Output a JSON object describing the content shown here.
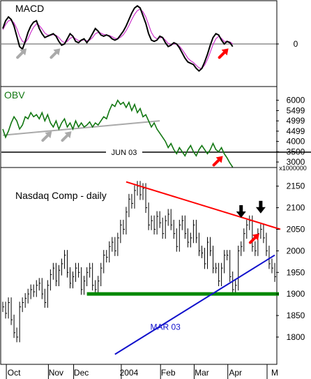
{
  "chart_data": [
    {
      "panel": "macd",
      "type": "line",
      "title": "MACD",
      "ylim": [
        -1.6,
        1.6
      ],
      "y_ticks": [
        {
          "value": 0,
          "label": "0"
        }
      ],
      "zero_line": 0,
      "series": [
        {
          "role": "macd",
          "color": "#000000",
          "values": [
            0.6,
            0.9,
            1.05,
            0.95,
            0.7,
            0.3,
            -0.1,
            -0.2,
            0.1,
            0.45,
            0.7,
            0.85,
            0.9,
            0.6,
            0.4,
            0.25,
            0.3,
            0.35,
            0.4,
            0.3,
            0.1,
            -0.05,
            0.0,
            0.2,
            0.4,
            0.3,
            0.1,
            0.05,
            0.15,
            0.2,
            0.05,
            0.2,
            0.4,
            0.6,
            0.5,
            0.35,
            0.3,
            0.35,
            0.3,
            0.2,
            0.15,
            0.2,
            0.35,
            0.5,
            0.7,
            0.95,
            1.2,
            1.4,
            1.48,
            1.4,
            1.1,
            0.8,
            0.4,
            0.15,
            0.1,
            0.15,
            0.3,
            0.25,
            0.05,
            -0.1,
            -0.05,
            0.05,
            0.0,
            -0.15,
            -0.35,
            -0.55,
            -0.7,
            -0.75,
            -0.8,
            -0.95,
            -1.05,
            -0.95,
            -0.7,
            -0.4,
            -0.05,
            0.25,
            0.4,
            0.35,
            0.15,
            0.0,
            0.1,
            0.05,
            -0.1
          ]
        },
        {
          "role": "signal",
          "color": "#cc33cc",
          "values": [
            0.55,
            0.75,
            0.9,
            0.92,
            0.82,
            0.6,
            0.3,
            0.1,
            0.05,
            0.2,
            0.45,
            0.65,
            0.78,
            0.72,
            0.58,
            0.42,
            0.35,
            0.34,
            0.36,
            0.34,
            0.25,
            0.12,
            0.05,
            0.1,
            0.22,
            0.27,
            0.2,
            0.13,
            0.13,
            0.16,
            0.12,
            0.15,
            0.25,
            0.4,
            0.45,
            0.42,
            0.37,
            0.35,
            0.33,
            0.28,
            0.22,
            0.2,
            0.26,
            0.36,
            0.52,
            0.72,
            0.95,
            1.15,
            1.3,
            1.35,
            1.25,
            1.05,
            0.75,
            0.45,
            0.27,
            0.2,
            0.24,
            0.25,
            0.15,
            0.02,
            -0.03,
            0.0,
            0.0,
            -0.08,
            -0.22,
            -0.38,
            -0.55,
            -0.65,
            -0.72,
            -0.83,
            -0.93,
            -0.95,
            -0.82,
            -0.6,
            -0.32,
            -0.02,
            0.2,
            0.3,
            0.22,
            0.1,
            0.1,
            0.08,
            0.0
          ]
        }
      ],
      "annotations": [
        {
          "kind": "arrow",
          "color": "#aaaaaa",
          "at_index": 8
        },
        {
          "kind": "arrow",
          "color": "#aaaaaa",
          "at_index": 20
        },
        {
          "kind": "arrow",
          "color": "#ff0000",
          "at_index": 80
        }
      ]
    },
    {
      "panel": "obv",
      "type": "line",
      "title": "OBV",
      "ylim": [
        2800,
        6600
      ],
      "y_ticks": [
        {
          "value": 6000,
          "label": "6000"
        },
        {
          "value": 5499,
          "label": "5499"
        },
        {
          "value": 4999,
          "label": "4999"
        },
        {
          "value": 4499,
          "label": "4499"
        },
        {
          "value": 4000,
          "label": "4000"
        },
        {
          "value": 3500,
          "label": "3500"
        },
        {
          "value": 3000,
          "label": "3000"
        }
      ],
      "unit_label": "x1000000",
      "series": [
        {
          "role": "obv",
          "color": "#117711",
          "values": [
            4600,
            4200,
            4500,
            4900,
            5200,
            5000,
            4600,
            4800,
            5200,
            5100,
            5400,
            5200,
            5300,
            5100,
            5400,
            5000,
            5300,
            4900,
            4700,
            5000,
            4600,
            4900,
            5100,
            4700,
            4900,
            4600,
            5000,
            4700,
            4900,
            4700,
            4800,
            4950,
            4700,
            4900,
            4800,
            5000,
            5200,
            5100,
            5500,
            5800,
            5700,
            6000,
            5800,
            5900,
            5650,
            5900,
            5500,
            5800,
            5400,
            5600,
            5200,
            5300,
            5000,
            4700,
            4900,
            4600,
            4400,
            4200,
            4000,
            3700,
            3900,
            3600,
            3400,
            3700,
            3500,
            3300,
            3600,
            3800,
            3500,
            3300,
            3600,
            3800,
            3600,
            3400,
            3600,
            3900,
            3600,
            3500,
            3700,
            3400,
            3200,
            2950,
            2750
          ]
        }
      ],
      "trendline": {
        "color": "#aaaaaa",
        "from": {
          "index": 0,
          "value": 4300
        },
        "to": {
          "index": 56,
          "value": 5000
        }
      },
      "hline": {
        "value": 3480,
        "label": "JUN 03",
        "color": "#000000"
      },
      "annotations": [
        {
          "kind": "arrow",
          "color": "#aaaaaa",
          "at_index": 17
        },
        {
          "kind": "arrow",
          "color": "#aaaaaa",
          "at_index": 24
        },
        {
          "kind": "arrow",
          "color": "#ff0000",
          "at_index": 78
        }
      ]
    },
    {
      "panel": "price",
      "type": "line",
      "title": "Nasdaq Comp - daily",
      "ylim": [
        1740,
        2190
      ],
      "y_ticks": [
        {
          "value": 2150,
          "label": "2150"
        },
        {
          "value": 2100,
          "label": "2100"
        },
        {
          "value": 2050,
          "label": "2050"
        },
        {
          "value": 2000,
          "label": "2000"
        },
        {
          "value": 1950,
          "label": "1950"
        },
        {
          "value": 1900,
          "label": "1900"
        },
        {
          "value": 1850,
          "label": "1850"
        },
        {
          "value": 1800,
          "label": "1800"
        }
      ],
      "x_labels": [
        "Oct",
        "Nov",
        "Dec",
        "2004",
        "Feb",
        "Mar",
        "Apr",
        "M"
      ],
      "x_label_index": [
        4,
        19,
        28,
        45,
        59,
        71,
        83,
        97
      ],
      "series": [
        {
          "role": "close",
          "color": "#000000",
          "values": [
            1870,
            1855,
            1880,
            1840,
            1810,
            1800,
            1870,
            1880,
            1890,
            1900,
            1910,
            1905,
            1920,
            1925,
            1900,
            1880,
            1920,
            1945,
            1960,
            1930,
            1955,
            1970,
            1990,
            1950,
            1925,
            1940,
            1960,
            1950,
            1910,
            1930,
            1950,
            1960,
            1920,
            1910,
            1930,
            1960,
            1990,
            1985,
            2010,
            2020,
            2000,
            2030,
            2060,
            2050,
            2090,
            2120,
            2110,
            2140,
            2150,
            2130,
            2145,
            2100,
            2060,
            2070,
            2050,
            2080,
            2065,
            2040,
            2070,
            2085,
            2060,
            2040,
            2010,
            2060,
            2070,
            2040,
            2020,
            2030,
            2060,
            2030,
            2000,
            1995,
            1970,
            2020,
            2000,
            1960,
            1960,
            1930,
            1960,
            1990,
            1990,
            1940,
            1910,
            1920,
            2000,
            2010,
            2040,
            2060,
            2070,
            2010,
            2000,
            2040,
            2050,
            2030,
            2000,
            1970,
            1960,
            1940
          ]
        }
      ],
      "lines": [
        {
          "role": "resistance",
          "color": "#ff0000",
          "from": {
            "index": 44,
            "value": 2160
          },
          "to": {
            "index": 99,
            "value": 2050
          }
        },
        {
          "role": "support",
          "color": "#008800",
          "value": 1900,
          "from_index": 30,
          "to_index": 99
        },
        {
          "role": "trendline",
          "label": "MAR 03",
          "color": "#1111cc",
          "from": {
            "index": 40,
            "value": 1760
          },
          "to": {
            "index": 97,
            "value": 1990
          }
        }
      ],
      "annotations": [
        {
          "kind": "arrow-down",
          "color": "#000000",
          "at_index": 85
        },
        {
          "kind": "arrow-down",
          "color": "#000000",
          "at_index": 92
        },
        {
          "kind": "arrow",
          "color": "#ff0000",
          "at_index": 92
        }
      ]
    }
  ]
}
